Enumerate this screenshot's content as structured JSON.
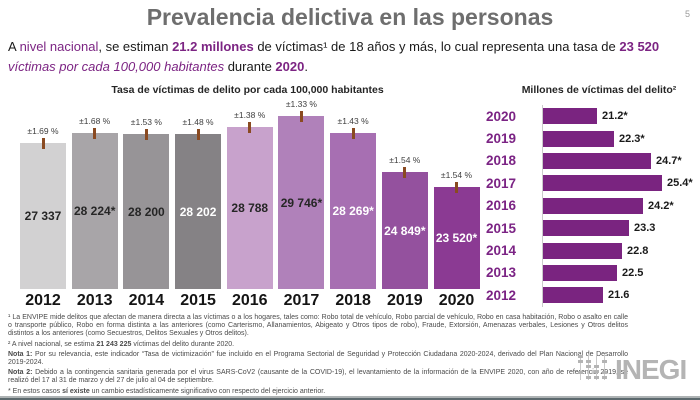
{
  "page": {
    "title": "Prevalencia delictiva en las personas",
    "page_number": "5",
    "accent_color": "#7c2483"
  },
  "intro": {
    "segments": [
      {
        "t": "A "
      },
      {
        "t": "nivel nacional",
        "c": "p"
      },
      {
        "t": ", se estiman "
      },
      {
        "t": "21.2 millones",
        "c": "bp"
      },
      {
        "t": " de víctimas¹ de 18 años y más, lo cual representa una tasa de "
      },
      {
        "t": "23 520",
        "c": "bp"
      },
      {
        "br": true
      },
      {
        "t": "víctimas por cada 100,000 habitantes",
        "c": "ip"
      },
      {
        "t": " durante "
      },
      {
        "t": "2020",
        "c": "bp"
      },
      {
        "t": "."
      }
    ]
  },
  "chart_data": [
    {
      "type": "bar",
      "title": "Tasa de víctimas de delito por cada 100,000 habitantes",
      "categories": [
        "2012",
        "2013",
        "2014",
        "2015",
        "2016",
        "2017",
        "2018",
        "2019",
        "2020"
      ],
      "values": [
        27337,
        28224,
        28200,
        28202,
        28788,
        29746,
        28269,
        24849,
        23520
      ],
      "labels": [
        "27 337",
        "28 224*",
        "28 200",
        "28 202",
        "28 788",
        "29 746*",
        "28 269*",
        "24 849*",
        "23 520*"
      ],
      "error_margins": [
        "±1.69 %",
        "±1.68 %",
        "±1.53 %",
        "±1.48 %",
        "±1.38 %",
        "±1.33 %",
        "±1.43 %",
        "±1.54 %",
        "±1.54 %"
      ],
      "bar_colors": [
        "#d2d1d2",
        "#a8a5a8",
        "#979497",
        "#858285",
        "#c8a2cc",
        "#b081ba",
        "#a76fb2",
        "#94519e",
        "#8b3a93"
      ],
      "label_colors": [
        "#262626",
        "#262626",
        "#262626",
        "#ffffff",
        "#262626",
        "#262626",
        "#ffffff",
        "#ffffff",
        "#ffffff"
      ],
      "error_tick_color": "#8a4a21",
      "ylim": [
        14575,
        30800
      ],
      "grid": false,
      "legend": "none"
    },
    {
      "type": "horizontal-bar",
      "title": "Millones de víctimas del delito²",
      "categories": [
        "2020",
        "2019",
        "2018",
        "2017",
        "2016",
        "2015",
        "2014",
        "2013",
        "2012"
      ],
      "values": [
        21.2,
        22.3,
        24.7,
        25.4,
        24.2,
        23.3,
        22.8,
        22.5,
        21.6
      ],
      "labels": [
        "21.2*",
        "22.3*",
        "24.7*",
        "25.4*",
        "24.2*",
        "23.3",
        "22.8",
        "22.5",
        "21.6"
      ],
      "bar_color": "#7a2480",
      "year_label_color": "#7b2384",
      "xlim": [
        17.74,
        26.56
      ],
      "grid": false,
      "legend": "none"
    }
  ],
  "footnotes": {
    "f1": [
      {
        "t": "¹ La ENVIPE mide delitos que afectan de manera directa a las víctimas o a los hogares, tales como: Robo total de vehículo, Robo parcial de vehículo, Robo en casa habitación, Robo o asalto en calle o transporte público, Robo en forma distinta a las anteriores (como Carterismo, Allanamientos, Abigeato y Otros tipos de robo), Fraude, Extorsión, Amenazas verbales, Lesiones y Otros delitos distintos a los anteriores (como Secuestros, Delitos Sexuales y Otros delitos)."
      }
    ],
    "f2": [
      {
        "t": "² A nivel nacional, se estima "
      },
      {
        "t": "21 243 225",
        "c": "b"
      },
      {
        "t": " víctimas del delito durante 2020."
      }
    ],
    "f3": [
      {
        "t": "Nota 1:",
        "c": "b"
      },
      {
        "t": " Por su relevancia, este indicador “Tasa de victimización” fue incluido en el Programa Sectorial de Seguridad y Protección Ciudadana 2020-2024, derivado del Plan Nacional de Desarrollo 2019-2024."
      }
    ],
    "f4": [
      {
        "t": "Nota 2:",
        "c": "b"
      },
      {
        "t": " Debido a la contingencia sanitaria generada por el virus SARS-CoV2 (causante de la COVID-19), el levantamiento de la información de la ENVIPE 2020, con año de referencia 2019, se realizó del 17 al 31 de marzo y del 27 de julio al 04 de septiembre."
      }
    ],
    "f5": [
      {
        "t": "* En estos casos "
      },
      {
        "t": "sí existe",
        "c": "b"
      },
      {
        "t": " un cambio estadísticamente significativo con respecto del ejercicio anterior."
      }
    ]
  },
  "logo": {
    "text": "INEGI",
    "color": "#b4b4b4"
  }
}
